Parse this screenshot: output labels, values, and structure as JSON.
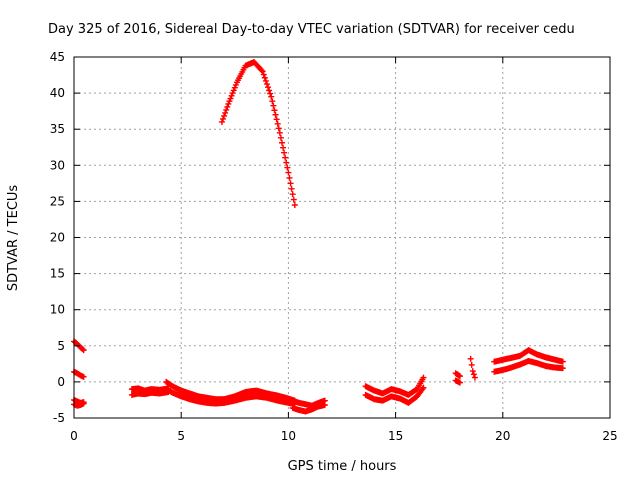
{
  "chart_data": {
    "type": "scatter",
    "title": "Day 325 of 2016, Sidereal Day-to-day VTEC variation (SDTVAR) for receiver cedu",
    "xlabel": "GPS time / hours",
    "ylabel": "SDTVAR / TECUs",
    "xlim": [
      0,
      25
    ],
    "ylim": [
      -5,
      45
    ],
    "xticks": [
      0,
      5,
      10,
      15,
      20,
      25
    ],
    "yticks": [
      -5,
      0,
      5,
      10,
      15,
      20,
      25,
      30,
      35,
      40,
      45
    ],
    "grid": true,
    "marker": "+",
    "series": [
      {
        "name": "SDTVAR",
        "color": "#ff0000",
        "segments": [
          {
            "x": [
              0.0,
              0.1,
              0.2,
              0.3,
              0.45
            ],
            "y": [
              5.6,
              5.4,
              5.1,
              4.8,
              4.4
            ]
          },
          {
            "x": [
              0.0,
              0.15,
              0.3,
              0.45
            ],
            "y": [
              1.4,
              1.2,
              0.9,
              0.7
            ]
          },
          {
            "x": [
              0.0,
              0.15,
              0.3,
              0.45
            ],
            "y": [
              -2.5,
              -2.7,
              -2.9,
              -2.8
            ]
          },
          {
            "x": [
              0.0,
              0.15,
              0.3,
              0.45
            ],
            "y": [
              -3.1,
              -3.3,
              -3.2,
              -3.0
            ]
          },
          {
            "x": [
              2.7,
              3.0,
              3.3,
              3.6,
              4.0,
              4.4
            ],
            "y": [
              -1.8,
              -1.6,
              -1.7,
              -1.5,
              -1.6,
              -1.4
            ]
          },
          {
            "x": [
              2.7,
              3.0,
              3.3,
              3.6,
              4.0,
              4.4
            ],
            "y": [
              -1.0,
              -0.9,
              -1.2,
              -1.0,
              -1.1,
              -0.9
            ]
          },
          {
            "x": [
              4.3,
              4.6,
              5.0,
              5.4,
              5.8,
              6.2,
              6.6,
              7.0
            ],
            "y": [
              0.0,
              -0.6,
              -1.2,
              -1.6,
              -2.0,
              -2.2,
              -2.4,
              -2.4
            ]
          },
          {
            "x": [
              4.3,
              4.6,
              5.0,
              5.4,
              5.8,
              6.2,
              6.6,
              7.0
            ],
            "y": [
              -1.0,
              -1.5,
              -2.0,
              -2.4,
              -2.7,
              -2.9,
              -3.0,
              -2.9
            ]
          },
          {
            "x": [
              7.0,
              7.5,
              8.0,
              8.5,
              9.0,
              9.5,
              10.0,
              10.3
            ],
            "y": [
              -2.4,
              -2.0,
              -1.4,
              -1.2,
              -1.6,
              -1.9,
              -2.3,
              -2.6
            ]
          },
          {
            "x": [
              7.0,
              7.5,
              8.0,
              8.5,
              9.0,
              9.5,
              10.0,
              10.3
            ],
            "y": [
              -2.9,
              -2.6,
              -2.2,
              -2.0,
              -2.2,
              -2.6,
              -2.9,
              -3.1
            ]
          },
          {
            "x": [
              10.2,
              10.5,
              10.8,
              11.1,
              11.4,
              11.7
            ],
            "y": [
              -2.6,
              -2.9,
              -3.1,
              -3.3,
              -2.9,
              -2.6
            ]
          },
          {
            "x": [
              10.2,
              10.5,
              10.8,
              11.1,
              11.4,
              11.7
            ],
            "y": [
              -3.6,
              -3.9,
              -4.1,
              -3.8,
              -3.4,
              -3.2
            ]
          },
          {
            "x": [
              6.9,
              7.2,
              7.6,
              8.0,
              8.4,
              8.8,
              9.2,
              9.6,
              10.0,
              10.3
            ],
            "y": [
              36.0,
              38.5,
              41.5,
              43.8,
              44.3,
              43.0,
              39.5,
              34.5,
              29.0,
              24.5
            ]
          },
          {
            "x": [
              13.6,
              14.0,
              14.4,
              14.8,
              15.2,
              15.6,
              16.0,
              16.3
            ],
            "y": [
              -0.6,
              -1.2,
              -1.6,
              -1.0,
              -1.3,
              -1.8,
              -1.0,
              0.6
            ]
          },
          {
            "x": [
              13.6,
              14.0,
              14.4,
              14.8,
              15.2,
              15.6,
              16.0,
              16.3
            ],
            "y": [
              -1.8,
              -2.4,
              -2.6,
              -2.0,
              -2.3,
              -2.9,
              -2.0,
              -0.8
            ]
          },
          {
            "x": [
              17.8,
              18.0
            ],
            "y": [
              1.2,
              0.8
            ]
          },
          {
            "x": [
              17.8,
              18.0
            ],
            "y": [
              0.2,
              -0.1
            ]
          },
          {
            "x": [
              18.5,
              18.6,
              18.7
            ],
            "y": [
              3.2,
              1.5,
              0.6
            ]
          },
          {
            "x": [
              19.6,
              20.2,
              20.8,
              21.2,
              21.6,
              22.0,
              22.4,
              22.8
            ],
            "y": [
              2.8,
              3.2,
              3.6,
              4.4,
              3.8,
              3.4,
              3.1,
              2.8
            ]
          },
          {
            "x": [
              19.6,
              20.2,
              20.8,
              21.2,
              21.6,
              22.0,
              22.4,
              22.8
            ],
            "y": [
              1.4,
              1.8,
              2.4,
              2.9,
              2.6,
              2.2,
              2.0,
              1.9
            ]
          }
        ]
      }
    ]
  }
}
